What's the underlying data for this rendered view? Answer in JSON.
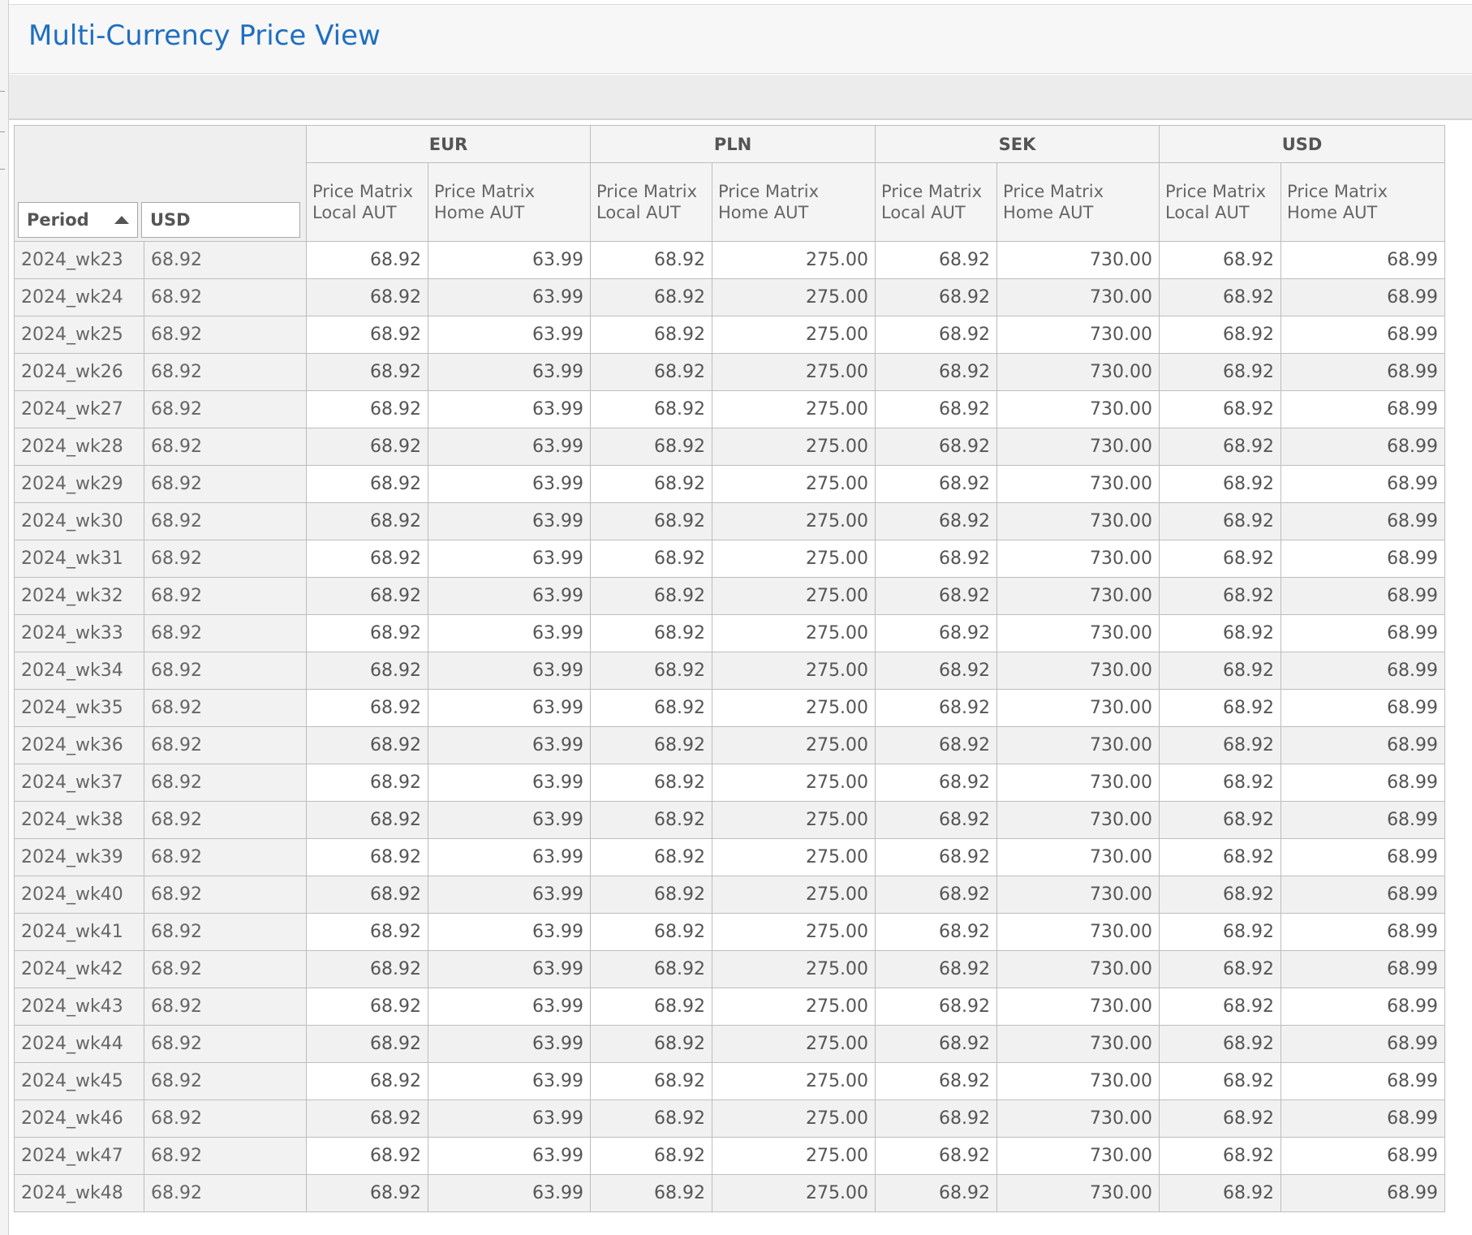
{
  "window": {
    "title": "Multi-Currency Price View"
  },
  "grid": {
    "row_headers": {
      "period_label": "Period",
      "usd_label": "USD"
    },
    "currency_groups": [
      "EUR",
      "PLN",
      "SEK",
      "USD"
    ],
    "column_labels": {
      "local": "Price Matrix Local AUT",
      "home": "Price Matrix Home AUT"
    },
    "rows": [
      {
        "period": "2024_wk23",
        "usd": "68.92",
        "values": [
          "68.92",
          "63.99",
          "68.92",
          "275.00",
          "68.92",
          "730.00",
          "68.92",
          "68.99"
        ]
      },
      {
        "period": "2024_wk24",
        "usd": "68.92",
        "values": [
          "68.92",
          "63.99",
          "68.92",
          "275.00",
          "68.92",
          "730.00",
          "68.92",
          "68.99"
        ]
      },
      {
        "period": "2024_wk25",
        "usd": "68.92",
        "values": [
          "68.92",
          "63.99",
          "68.92",
          "275.00",
          "68.92",
          "730.00",
          "68.92",
          "68.99"
        ]
      },
      {
        "period": "2024_wk26",
        "usd": "68.92",
        "values": [
          "68.92",
          "63.99",
          "68.92",
          "275.00",
          "68.92",
          "730.00",
          "68.92",
          "68.99"
        ]
      },
      {
        "period": "2024_wk27",
        "usd": "68.92",
        "values": [
          "68.92",
          "63.99",
          "68.92",
          "275.00",
          "68.92",
          "730.00",
          "68.92",
          "68.99"
        ]
      },
      {
        "period": "2024_wk28",
        "usd": "68.92",
        "values": [
          "68.92",
          "63.99",
          "68.92",
          "275.00",
          "68.92",
          "730.00",
          "68.92",
          "68.99"
        ]
      },
      {
        "period": "2024_wk29",
        "usd": "68.92",
        "values": [
          "68.92",
          "63.99",
          "68.92",
          "275.00",
          "68.92",
          "730.00",
          "68.92",
          "68.99"
        ]
      },
      {
        "period": "2024_wk30",
        "usd": "68.92",
        "values": [
          "68.92",
          "63.99",
          "68.92",
          "275.00",
          "68.92",
          "730.00",
          "68.92",
          "68.99"
        ]
      },
      {
        "period": "2024_wk31",
        "usd": "68.92",
        "values": [
          "68.92",
          "63.99",
          "68.92",
          "275.00",
          "68.92",
          "730.00",
          "68.92",
          "68.99"
        ]
      },
      {
        "period": "2024_wk32",
        "usd": "68.92",
        "values": [
          "68.92",
          "63.99",
          "68.92",
          "275.00",
          "68.92",
          "730.00",
          "68.92",
          "68.99"
        ]
      },
      {
        "period": "2024_wk33",
        "usd": "68.92",
        "values": [
          "68.92",
          "63.99",
          "68.92",
          "275.00",
          "68.92",
          "730.00",
          "68.92",
          "68.99"
        ]
      },
      {
        "period": "2024_wk34",
        "usd": "68.92",
        "values": [
          "68.92",
          "63.99",
          "68.92",
          "275.00",
          "68.92",
          "730.00",
          "68.92",
          "68.99"
        ]
      },
      {
        "period": "2024_wk35",
        "usd": "68.92",
        "values": [
          "68.92",
          "63.99",
          "68.92",
          "275.00",
          "68.92",
          "730.00",
          "68.92",
          "68.99"
        ]
      },
      {
        "period": "2024_wk36",
        "usd": "68.92",
        "values": [
          "68.92",
          "63.99",
          "68.92",
          "275.00",
          "68.92",
          "730.00",
          "68.92",
          "68.99"
        ]
      },
      {
        "period": "2024_wk37",
        "usd": "68.92",
        "values": [
          "68.92",
          "63.99",
          "68.92",
          "275.00",
          "68.92",
          "730.00",
          "68.92",
          "68.99"
        ]
      },
      {
        "period": "2024_wk38",
        "usd": "68.92",
        "values": [
          "68.92",
          "63.99",
          "68.92",
          "275.00",
          "68.92",
          "730.00",
          "68.92",
          "68.99"
        ]
      },
      {
        "period": "2024_wk39",
        "usd": "68.92",
        "values": [
          "68.92",
          "63.99",
          "68.92",
          "275.00",
          "68.92",
          "730.00",
          "68.92",
          "68.99"
        ]
      },
      {
        "period": "2024_wk40",
        "usd": "68.92",
        "values": [
          "68.92",
          "63.99",
          "68.92",
          "275.00",
          "68.92",
          "730.00",
          "68.92",
          "68.99"
        ]
      },
      {
        "period": "2024_wk41",
        "usd": "68.92",
        "values": [
          "68.92",
          "63.99",
          "68.92",
          "275.00",
          "68.92",
          "730.00",
          "68.92",
          "68.99"
        ]
      },
      {
        "period": "2024_wk42",
        "usd": "68.92",
        "values": [
          "68.92",
          "63.99",
          "68.92",
          "275.00",
          "68.92",
          "730.00",
          "68.92",
          "68.99"
        ]
      },
      {
        "period": "2024_wk43",
        "usd": "68.92",
        "values": [
          "68.92",
          "63.99",
          "68.92",
          "275.00",
          "68.92",
          "730.00",
          "68.92",
          "68.99"
        ]
      },
      {
        "period": "2024_wk44",
        "usd": "68.92",
        "values": [
          "68.92",
          "63.99",
          "68.92",
          "275.00",
          "68.92",
          "730.00",
          "68.92",
          "68.99"
        ]
      },
      {
        "period": "2024_wk45",
        "usd": "68.92",
        "values": [
          "68.92",
          "63.99",
          "68.92",
          "275.00",
          "68.92",
          "730.00",
          "68.92",
          "68.99"
        ]
      },
      {
        "period": "2024_wk46",
        "usd": "68.92",
        "values": [
          "68.92",
          "63.99",
          "68.92",
          "275.00",
          "68.92",
          "730.00",
          "68.92",
          "68.99"
        ]
      },
      {
        "period": "2024_wk47",
        "usd": "68.92",
        "values": [
          "68.92",
          "63.99",
          "68.92",
          "275.00",
          "68.92",
          "730.00",
          "68.92",
          "68.99"
        ]
      },
      {
        "period": "2024_wk48",
        "usd": "68.92",
        "values": [
          "68.92",
          "63.99",
          "68.92",
          "275.00",
          "68.92",
          "730.00",
          "68.92",
          "68.99"
        ]
      }
    ]
  },
  "colors": {
    "title": "#1f6fbf",
    "header_bg": "#f4f4f4",
    "alt_row_bg": "#f1f1f1",
    "grid_line": "#bdbdbd"
  },
  "icons": {
    "sort": "sort-ascending-icon"
  }
}
